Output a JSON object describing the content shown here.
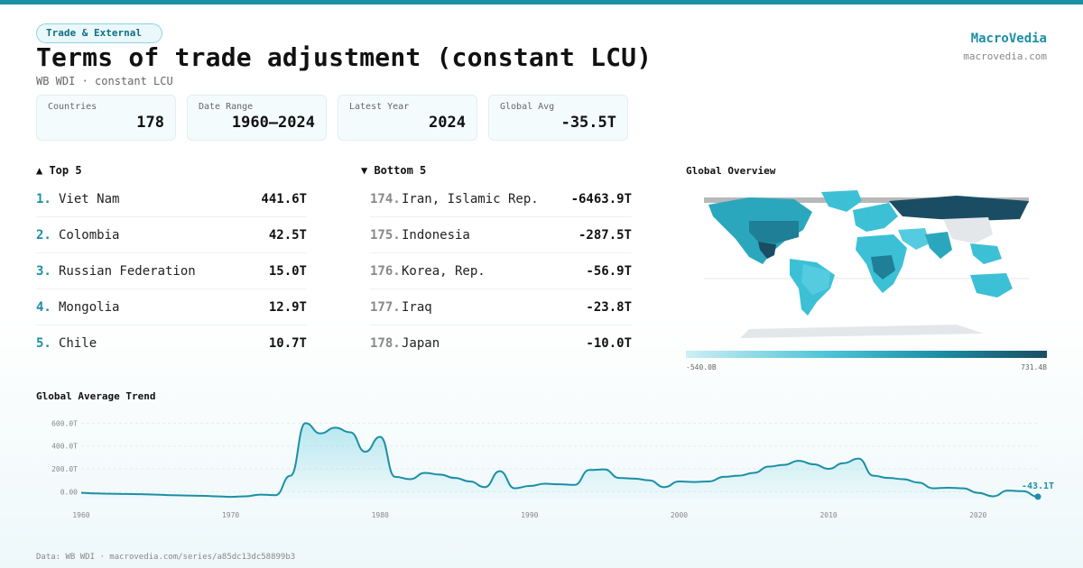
{
  "header": {
    "tag": "Trade & External",
    "title": "Terms of trade adjustment (constant LCU)",
    "subtitle": "WB WDI · constant LCU",
    "brand": "MacroVedia",
    "brand_url": "macrovedia.com"
  },
  "stats": [
    {
      "label": "Countries",
      "value": "178"
    },
    {
      "label": "Date Range",
      "value": "1960–2024"
    },
    {
      "label": "Latest Year",
      "value": "2024"
    },
    {
      "label": "Global Avg",
      "value": "-35.5T"
    }
  ],
  "top5": {
    "heading": "▲ Top 5",
    "items": [
      {
        "rank": "1.",
        "name": "Viet Nam",
        "value": "441.6T"
      },
      {
        "rank": "2.",
        "name": "Colombia",
        "value": "42.5T"
      },
      {
        "rank": "3.",
        "name": "Russian Federation",
        "value": "15.0T"
      },
      {
        "rank": "4.",
        "name": "Mongolia",
        "value": "12.9T"
      },
      {
        "rank": "5.",
        "name": "Chile",
        "value": "10.7T"
      }
    ]
  },
  "bottom5": {
    "heading": "▼ Bottom 5",
    "items": [
      {
        "rank": "174.",
        "name": "Iran, Islamic Rep.",
        "value": "-6463.9T"
      },
      {
        "rank": "175.",
        "name": "Indonesia",
        "value": "-287.5T"
      },
      {
        "rank": "176.",
        "name": "Korea, Rep.",
        "value": "-56.9T"
      },
      {
        "rank": "177.",
        "name": "Iraq",
        "value": "-23.8T"
      },
      {
        "rank": "178.",
        "name": "Japan",
        "value": "-10.0T"
      }
    ]
  },
  "map": {
    "heading": "Global Overview",
    "scale_min": "-540.0B",
    "scale_max": "731.4B",
    "colors": {
      "no_data": "#e4e7ea",
      "low": "#cdeff5",
      "mid": "#3cc0d6",
      "high": "#1a4d63"
    }
  },
  "trend": {
    "heading": "Global Average Trend",
    "end_label": "-43.1T"
  },
  "footer": {
    "text": "Data: WB WDI · macrovedia.com/series/a85dc13dc58899b3"
  },
  "chart_data": {
    "type": "area",
    "title": "Global Average Trend",
    "xlabel": "",
    "ylabel": "",
    "ylim": [
      -60,
      650
    ],
    "xlim": [
      1960,
      2024
    ],
    "x_ticks": [
      1960,
      1970,
      1980,
      1990,
      2000,
      2010,
      2020
    ],
    "x_tick_labels": [
      "1960",
      "1970",
      "1980",
      "1990",
      "2000",
      "2010",
      "2020"
    ],
    "y_ticks": [
      0,
      200,
      400,
      600
    ],
    "y_tick_labels": [
      "0.00",
      "200.0T",
      "400.0T",
      "600.0T"
    ],
    "grid": true,
    "series": [
      {
        "color": "#1b8fa6",
        "x": [
          1960,
          1961,
          1962,
          1963,
          1964,
          1965,
          1966,
          1967,
          1968,
          1969,
          1970,
          1971,
          1972,
          1973,
          1974,
          1975,
          1976,
          1977,
          1978,
          1979,
          1980,
          1981,
          1982,
          1983,
          1984,
          1985,
          1986,
          1987,
          1988,
          1989,
          1990,
          1991,
          1992,
          1993,
          1994,
          1995,
          1996,
          1997,
          1998,
          1999,
          2000,
          2001,
          2002,
          2003,
          2004,
          2005,
          2006,
          2007,
          2008,
          2009,
          2010,
          2011,
          2012,
          2013,
          2014,
          2015,
          2016,
          2017,
          2018,
          2019,
          2020,
          2021,
          2022,
          2023,
          2024
        ],
        "values": [
          -10,
          -15,
          -18,
          -20,
          -22,
          -25,
          -30,
          -33,
          -35,
          -40,
          -45,
          -40,
          -25,
          -30,
          140,
          600,
          510,
          560,
          520,
          350,
          480,
          130,
          110,
          165,
          150,
          120,
          90,
          40,
          180,
          30,
          50,
          70,
          65,
          60,
          190,
          195,
          120,
          115,
          100,
          40,
          90,
          85,
          90,
          130,
          140,
          165,
          220,
          235,
          270,
          240,
          200,
          250,
          290,
          140,
          120,
          110,
          80,
          30,
          35,
          30,
          -10,
          -40,
          10,
          5,
          -43.1
        ]
      }
    ]
  }
}
